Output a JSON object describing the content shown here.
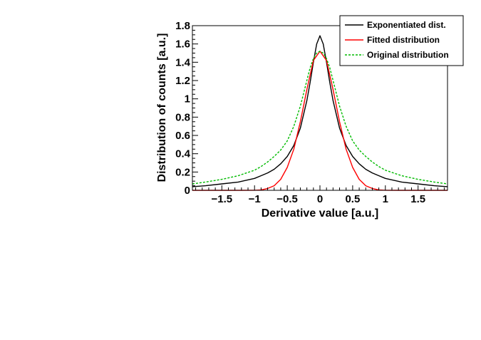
{
  "chart_data": {
    "type": "line",
    "xlabel": "Derivative value  [a.u.]",
    "ylabel": "Distribution of counts  [a.u.]",
    "xlim": [
      -1.95,
      1.95
    ],
    "ylim": [
      0,
      1.8
    ],
    "x_ticks": [
      {
        "value": -1.5,
        "label": "−1.5"
      },
      {
        "value": -1,
        "label": "−1"
      },
      {
        "value": -0.5,
        "label": "−0.5"
      },
      {
        "value": 0,
        "label": "0"
      },
      {
        "value": 0.5,
        "label": "0.5"
      },
      {
        "value": 1,
        "label": "1"
      },
      {
        "value": 1.5,
        "label": "1.5"
      }
    ],
    "y_ticks": [
      {
        "value": 0,
        "label": "0"
      },
      {
        "value": 0.2,
        "label": "0.2"
      },
      {
        "value": 0.4,
        "label": "0.4"
      },
      {
        "value": 0.6,
        "label": "0.6"
      },
      {
        "value": 0.8,
        "label": "0.8"
      },
      {
        "value": 1.0,
        "label": "1"
      },
      {
        "value": 1.2,
        "label": "1.2"
      },
      {
        "value": 1.4,
        "label": "1.4"
      },
      {
        "value": 1.6,
        "label": "1.6"
      },
      {
        "value": 1.8,
        "label": "1.8"
      }
    ],
    "grid": false,
    "legend_position": "top-right",
    "series": [
      {
        "name": "Exponentiated dist.",
        "color": "#000000",
        "dash": "solid",
        "x": [
          -1.95,
          -1.75,
          -1.5,
          -1.25,
          -1.0,
          -0.9,
          -0.8,
          -0.7,
          -0.6,
          -0.5,
          -0.4,
          -0.3,
          -0.2,
          -0.15,
          -0.1,
          -0.05,
          0.0,
          0.05,
          0.1,
          0.15,
          0.2,
          0.3,
          0.4,
          0.5,
          0.6,
          0.7,
          0.8,
          0.9,
          1.0,
          1.25,
          1.5,
          1.75,
          1.95
        ],
        "y": [
          0.04,
          0.05,
          0.07,
          0.09,
          0.13,
          0.16,
          0.19,
          0.23,
          0.29,
          0.37,
          0.49,
          0.68,
          0.98,
          1.18,
          1.4,
          1.6,
          1.69,
          1.6,
          1.4,
          1.18,
          0.98,
          0.68,
          0.49,
          0.37,
          0.29,
          0.23,
          0.19,
          0.16,
          0.13,
          0.09,
          0.07,
          0.05,
          0.04
        ]
      },
      {
        "name": "Fitted distribution",
        "color": "#ff0000",
        "dash": "solid",
        "x": [
          -1.95,
          -1.2,
          -1.0,
          -0.9,
          -0.8,
          -0.7,
          -0.6,
          -0.5,
          -0.4,
          -0.3,
          -0.2,
          -0.1,
          0.0,
          0.1,
          0.2,
          0.3,
          0.4,
          0.5,
          0.6,
          0.7,
          0.8,
          0.9,
          1.0,
          1.2,
          1.95
        ],
        "y": [
          0.0,
          0.0,
          0.001,
          0.005,
          0.02,
          0.05,
          0.12,
          0.25,
          0.45,
          0.75,
          1.1,
          1.42,
          1.52,
          1.42,
          1.1,
          0.75,
          0.45,
          0.25,
          0.12,
          0.05,
          0.02,
          0.005,
          0.001,
          0.0,
          0.0
        ]
      },
      {
        "name": "Original distribution",
        "color": "#00bb00",
        "dash": "dashed",
        "x": [
          -1.95,
          -1.75,
          -1.5,
          -1.25,
          -1.0,
          -0.9,
          -0.8,
          -0.7,
          -0.6,
          -0.5,
          -0.4,
          -0.3,
          -0.2,
          -0.15,
          -0.1,
          -0.05,
          0.0,
          0.05,
          0.1,
          0.15,
          0.2,
          0.3,
          0.4,
          0.5,
          0.6,
          0.7,
          0.8,
          0.9,
          1.0,
          1.25,
          1.5,
          1.75,
          1.95
        ],
        "y": [
          0.07,
          0.09,
          0.12,
          0.16,
          0.22,
          0.26,
          0.31,
          0.37,
          0.44,
          0.54,
          0.7,
          0.92,
          1.2,
          1.34,
          1.44,
          1.5,
          1.52,
          1.5,
          1.44,
          1.34,
          1.2,
          0.92,
          0.7,
          0.54,
          0.44,
          0.37,
          0.31,
          0.26,
          0.22,
          0.16,
          0.12,
          0.09,
          0.07
        ]
      }
    ]
  }
}
